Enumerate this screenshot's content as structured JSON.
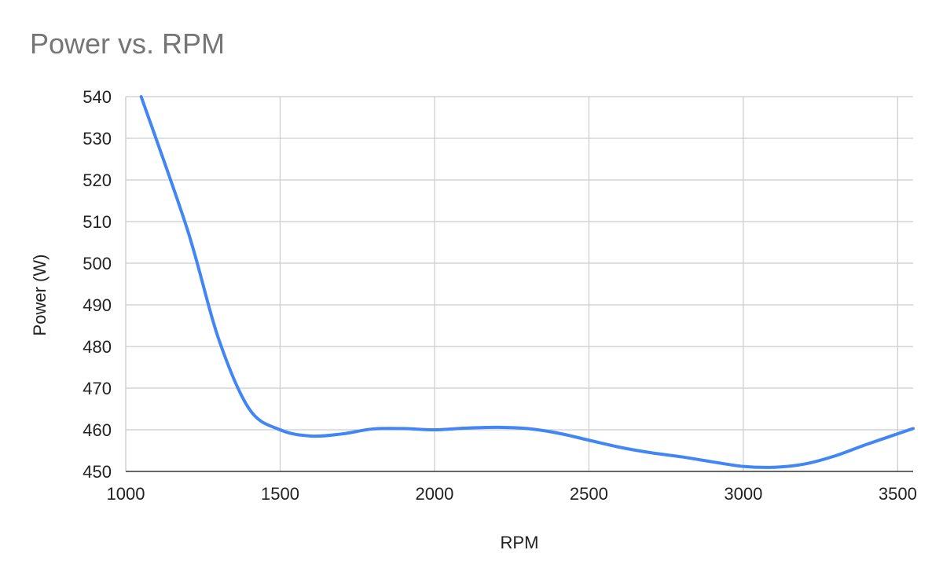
{
  "chart_data": {
    "type": "line",
    "title": "Power vs. RPM",
    "xlabel": "RPM",
    "ylabel": "Power (W)",
    "xlim": [
      1000,
      3550
    ],
    "ylim": [
      450,
      540
    ],
    "x_ticks": [
      1000,
      1500,
      2000,
      2500,
      3000,
      3500
    ],
    "y_ticks": [
      450,
      460,
      470,
      480,
      490,
      500,
      510,
      520,
      530,
      540
    ],
    "grid": true,
    "smooth": true,
    "series": [
      {
        "color": "#4285f4",
        "x": [
          1050,
          1200,
          1300,
          1400,
          1500,
          1600,
          1700,
          1800,
          1900,
          2000,
          2100,
          2200,
          2300,
          2400,
          2500,
          2600,
          2700,
          2800,
          2900,
          3000,
          3100,
          3200,
          3300,
          3400,
          3550
        ],
        "y": [
          540,
          508,
          482,
          465,
          460,
          458.5,
          459,
          460.2,
          460.3,
          460,
          460.4,
          460.6,
          460.3,
          459.2,
          457.5,
          455.8,
          454.5,
          453.5,
          452.3,
          451.2,
          451,
          451.8,
          453.8,
          456.5,
          460.3
        ]
      }
    ]
  }
}
